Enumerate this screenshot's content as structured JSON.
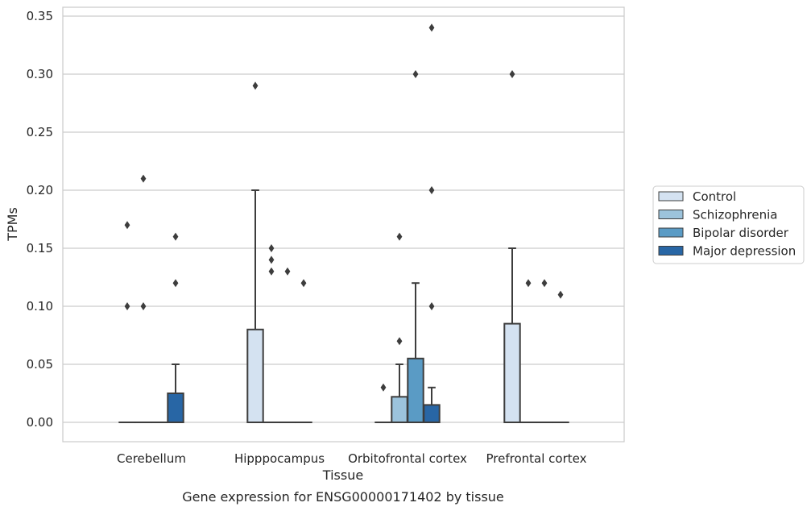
{
  "chart_data": {
    "type": "box",
    "title": "",
    "caption": "Gene expression for ENSG00000171402 by tissue",
    "xlabel": "Tissue",
    "ylabel": "TPMs",
    "ylim": [
      -0.017,
      0.357
    ],
    "yticks": [
      0.0,
      0.05,
      0.1,
      0.15,
      0.2,
      0.25,
      0.3,
      0.35
    ],
    "ytick_labels": [
      "0.00",
      "0.05",
      "0.10",
      "0.15",
      "0.20",
      "0.25",
      "0.30",
      "0.35"
    ],
    "grid": "horizontal",
    "legend_position": "right",
    "categories": [
      "Cerebellum",
      "Hipppocampus",
      "Orbitofrontal cortex",
      "Prefrontal cortex"
    ],
    "series": [
      {
        "name": "Control",
        "color": "#d4e2f1",
        "boxes": [
          {
            "q1": 0.0,
            "median": 0.0,
            "q3": 0.0,
            "whisker_low": 0.0,
            "whisker_high": 0.0,
            "outliers": [
              0.1,
              0.17
            ]
          },
          {
            "q1": 0.0,
            "median": 0.0,
            "q3": 0.08,
            "whisker_low": 0.0,
            "whisker_high": 0.2,
            "outliers": [
              0.29
            ]
          },
          {
            "q1": 0.0,
            "median": 0.0,
            "q3": 0.0,
            "whisker_low": 0.0,
            "whisker_high": 0.0,
            "outliers": [
              0.03
            ]
          },
          {
            "q1": 0.0,
            "median": 0.0,
            "q3": 0.085,
            "whisker_low": 0.0,
            "whisker_high": 0.15,
            "outliers": [
              0.3
            ]
          }
        ]
      },
      {
        "name": "Schizophrenia",
        "color": "#9cc3dc",
        "boxes": [
          {
            "q1": 0.0,
            "median": 0.0,
            "q3": 0.0,
            "whisker_low": 0.0,
            "whisker_high": 0.0,
            "outliers": [
              0.1,
              0.21
            ]
          },
          {
            "q1": 0.0,
            "median": 0.0,
            "q3": 0.0,
            "whisker_low": 0.0,
            "whisker_high": 0.0,
            "outliers": [
              0.13,
              0.14,
              0.15
            ]
          },
          {
            "q1": 0.0,
            "median": 0.0,
            "q3": 0.022,
            "whisker_low": 0.0,
            "whisker_high": 0.05,
            "outliers": [
              0.07,
              0.16
            ]
          },
          {
            "q1": 0.0,
            "median": 0.0,
            "q3": 0.0,
            "whisker_low": 0.0,
            "whisker_high": 0.0,
            "outliers": [
              0.12
            ]
          }
        ]
      },
      {
        "name": "Bipolar disorder",
        "color": "#5a9bc5",
        "boxes": [
          {
            "q1": 0.0,
            "median": 0.0,
            "q3": 0.0,
            "whisker_low": 0.0,
            "whisker_high": 0.0,
            "outliers": []
          },
          {
            "q1": 0.0,
            "median": 0.0,
            "q3": 0.0,
            "whisker_low": 0.0,
            "whisker_high": 0.0,
            "outliers": [
              0.13
            ]
          },
          {
            "q1": 0.0,
            "median": 0.0,
            "q3": 0.055,
            "whisker_low": 0.0,
            "whisker_high": 0.12,
            "outliers": [
              0.3
            ]
          },
          {
            "q1": 0.0,
            "median": 0.0,
            "q3": 0.0,
            "whisker_low": 0.0,
            "whisker_high": 0.0,
            "outliers": [
              0.12
            ]
          }
        ]
      },
      {
        "name": "Major depression",
        "color": "#2866a5",
        "boxes": [
          {
            "q1": 0.0,
            "median": 0.0,
            "q3": 0.025,
            "whisker_low": 0.0,
            "whisker_high": 0.05,
            "outliers": [
              0.12,
              0.16
            ]
          },
          {
            "q1": 0.0,
            "median": 0.0,
            "q3": 0.0,
            "whisker_low": 0.0,
            "whisker_high": 0.0,
            "outliers": [
              0.12
            ]
          },
          {
            "q1": 0.0,
            "median": 0.0,
            "q3": 0.015,
            "whisker_low": 0.0,
            "whisker_high": 0.03,
            "outliers": [
              0.1,
              0.2,
              0.34
            ]
          },
          {
            "q1": 0.0,
            "median": 0.0,
            "q3": 0.0,
            "whisker_low": 0.0,
            "whisker_high": 0.0,
            "outliers": [
              0.11
            ]
          }
        ]
      }
    ]
  }
}
